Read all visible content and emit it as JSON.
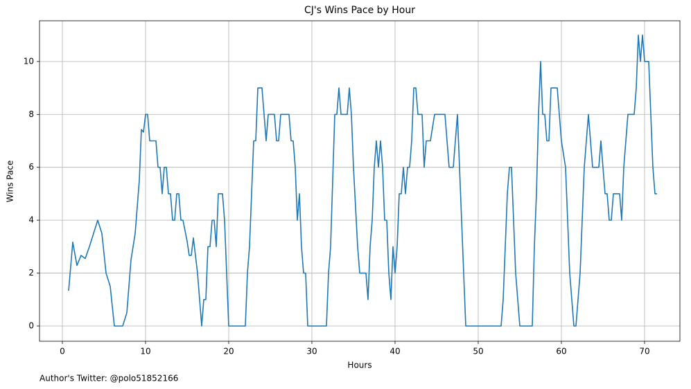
{
  "chart_data": {
    "type": "line",
    "title": "CJ's Wins Pace by Hour",
    "xlabel": "Hours",
    "ylabel": "Wins Pace",
    "footnote": "Author's Twitter: @polo51852166",
    "color": "#1f77b4",
    "grid": true,
    "xlim": [
      -2.75,
      74.25
    ],
    "ylim": [
      -0.576,
      11.54
    ],
    "xticks": [
      0,
      10,
      20,
      30,
      40,
      50,
      60,
      70
    ],
    "yticks": [
      0,
      2,
      4,
      6,
      8,
      10
    ],
    "x": [
      0.75,
      1.25,
      1.75,
      2.25,
      2.75,
      3.25,
      4.25,
      4.75,
      5.25,
      5.75,
      6.25,
      7.25,
      7.75,
      8.25,
      8.75,
      9.25,
      9.5,
      9.75,
      10,
      10.25,
      10.5,
      11.25,
      11.5,
      11.75,
      12,
      12.25,
      12.5,
      12.75,
      13,
      13.25,
      13.5,
      13.75,
      14,
      14.25,
      14.5,
      15,
      15.25,
      15.5,
      15.75,
      16.25,
      16.75,
      17,
      17.25,
      17.5,
      17.75,
      18,
      18.25,
      18.5,
      18.75,
      19.25,
      19.5,
      20,
      22,
      22.25,
      22.5,
      23,
      23.25,
      23.5,
      24,
      24.25,
      24.5,
      24.75,
      25.5,
      25.75,
      26,
      26.25,
      27.25,
      27.5,
      27.75,
      28,
      28.25,
      28.5,
      28.75,
      29,
      29.25,
      29.5,
      31.75,
      32,
      32.25,
      32.75,
      33,
      33.25,
      33.5,
      34.25,
      34.5,
      34.75,
      35,
      35.5,
      35.75,
      36.5,
      36.75,
      37,
      37.25,
      37.5,
      37.75,
      38,
      38.25,
      38.5,
      38.75,
      39,
      39.25,
      39.5,
      39.75,
      40,
      40.25,
      40.5,
      40.75,
      41,
      41.25,
      41.5,
      41.75,
      42,
      42.25,
      42.5,
      42.75,
      43.25,
      43.5,
      43.75,
      44.25,
      44.75,
      46,
      46.5,
      47,
      47.5,
      48,
      48.5,
      52.75,
      53,
      53.5,
      53.75,
      54,
      54.5,
      55,
      56.5,
      56.75,
      57,
      57.25,
      57.5,
      57.75,
      58,
      58.25,
      58.5,
      58.75,
      59.5,
      60,
      60.5,
      61,
      61.5,
      61.75,
      62.25,
      62.75,
      63.25,
      63.75,
      64.5,
      64.75,
      65.25,
      65.5,
      65.75,
      66,
      66.25,
      67,
      67.25,
      67.5,
      68,
      68.75,
      69,
      69.25,
      69.5,
      69.75,
      70,
      70.5,
      71,
      71.25,
      71.5
    ],
    "values": [
      1.33,
      3.17,
      2.29,
      2.67,
      2.55,
      3.0,
      4.0,
      3.5,
      2.0,
      1.5,
      0,
      0,
      0.5,
      2.5,
      3.5,
      5.5,
      7.43,
      7.33,
      8,
      8,
      7,
      7,
      6,
      6,
      5,
      6,
      6,
      5,
      5,
      4,
      4,
      5,
      5,
      4,
      4,
      3.2,
      2.67,
      2.67,
      3.33,
      2,
      0,
      1,
      1,
      3,
      3,
      4,
      4,
      3,
      5,
      5,
      4,
      0,
      0,
      2,
      3,
      7,
      7,
      9,
      9,
      8,
      7,
      8,
      8,
      7,
      7,
      8,
      8,
      7,
      7,
      6,
      4,
      5,
      3,
      2,
      2,
      0,
      0,
      2,
      3,
      8,
      8,
      9,
      8,
      8,
      9,
      8,
      6,
      3,
      2,
      2,
      1,
      3,
      4,
      6,
      7,
      6,
      7,
      6,
      4,
      4,
      2,
      1,
      3,
      2,
      3,
      5,
      5,
      6,
      5,
      6,
      6,
      7,
      9,
      9,
      8,
      8,
      6,
      7,
      7,
      8,
      8,
      6,
      6,
      8,
      4,
      0,
      0,
      1,
      5,
      6,
      6,
      2,
      0,
      0,
      3,
      5,
      8,
      10,
      8,
      8,
      7,
      7,
      9,
      9,
      7,
      6,
      2,
      0,
      0,
      2,
      6,
      8,
      6,
      6,
      7,
      5,
      5,
      4,
      4,
      5,
      5,
      4,
      6,
      8,
      8,
      9,
      11,
      10,
      11,
      10,
      10,
      6,
      5,
      5
    ]
  }
}
